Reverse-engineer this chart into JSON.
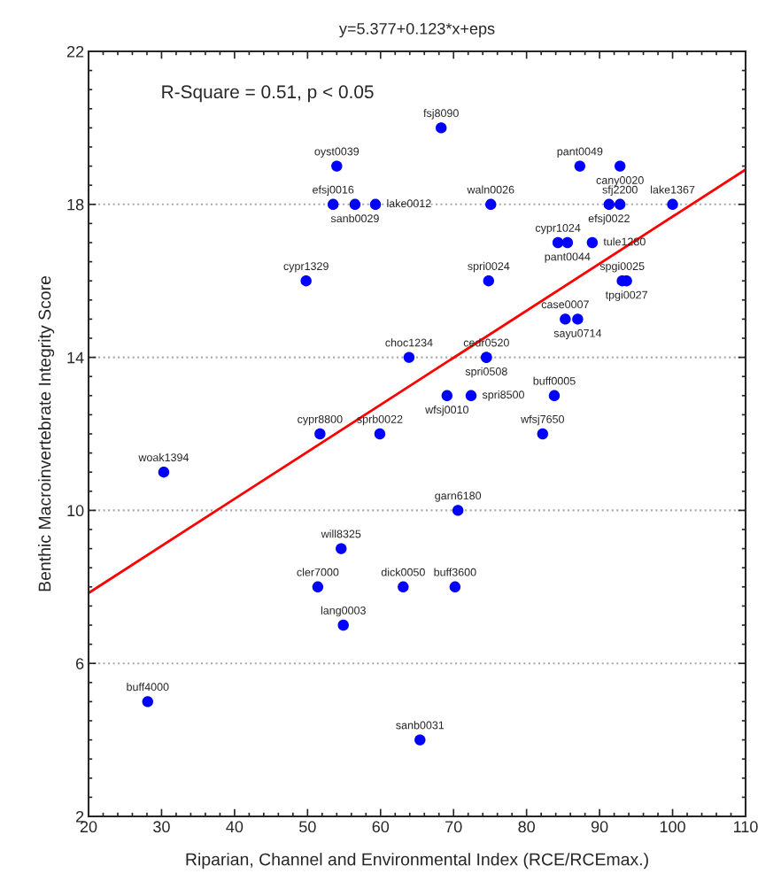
{
  "chart_data": {
    "type": "scatter",
    "title": "y=5.377+0.123*x+eps",
    "xlabel": "Riparian, Channel and Environmental Index (RCE/RCEmax.)",
    "ylabel": "Benthic Macroinvertebrate Integrity Score",
    "annotations": [
      "R-Square = 0.51, p < 0.05"
    ],
    "series": [
      {
        "color": "#0000ff",
        "marker": "circle",
        "x": [
          68.3,
          54.0,
          53.5,
          56.5,
          59.3,
          75.1,
          87.3,
          92.8,
          91.3,
          92.8,
          100,
          49.8,
          74.8,
          84.3,
          85.6,
          89.0,
          93.1,
          93.7,
          85.3,
          87.0,
          63.9,
          74.5,
          74.5,
          69.1,
          72.4,
          83.8,
          51.7,
          59.9,
          82.2,
          30.3,
          70.6,
          54.6,
          51.4,
          63.1,
          70.2,
          54.9,
          28.1,
          65.4
        ],
        "values": [
          20,
          19,
          18,
          18,
          18,
          18,
          19,
          19,
          18,
          18,
          18,
          16,
          16,
          17,
          17,
          17,
          16,
          16,
          15,
          15,
          14,
          14,
          14,
          13,
          13,
          13,
          12,
          12,
          12,
          11,
          10,
          9,
          8,
          8,
          8,
          7,
          5,
          4
        ],
        "value_labels": [
          "fsj8090",
          "oyst0039",
          "efsj0016",
          "sanb0029",
          "lake0012",
          "waln0026",
          "pant0049",
          "cany0020",
          "efsj0022",
          "sfj2200",
          "lake1367",
          "cypr1329",
          "spri0024",
          "cypr1024",
          "pant0044",
          "tule1280",
          "spgi0025",
          "tpgi0027",
          "case0007",
          "sayu0714",
          "choc1234",
          "cedr0520",
          "spri0508",
          "wfsj0010",
          "spri8500",
          "buff0005",
          "cypr8800",
          "sprb0022",
          "wfsj7650",
          "woak1394",
          "garn6180",
          "will8325",
          "cler7000",
          "dick0050",
          "buff3600",
          "lang0003",
          "buff4000",
          "sanb0031"
        ]
      },
      {
        "type": "line",
        "color": "#ff0000",
        "line_style": "solid",
        "x": [
          20,
          110
        ],
        "values": [
          7.84,
          18.91
        ]
      }
    ],
    "xlim": [
      20,
      110
    ],
    "xticks": [
      20,
      30,
      40,
      50,
      60,
      70,
      80,
      90,
      100,
      110
    ],
    "ylim": [
      2,
      22
    ],
    "yticks": [
      2,
      6,
      10,
      14,
      18,
      22
    ],
    "grid": "y",
    "legend": false
  }
}
